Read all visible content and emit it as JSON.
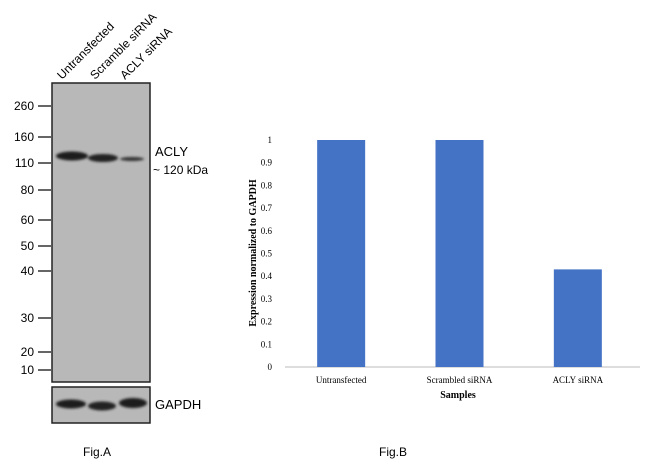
{
  "blot": {
    "lanes": [
      "Untransfected",
      "Scramble siRNA",
      "ACLY siRNA"
    ],
    "markers": [
      260,
      160,
      110,
      80,
      60,
      50,
      40,
      30,
      20,
      10
    ],
    "band_label": "ACLY",
    "band_size": "~ 120 kDa",
    "loading_label": "GAPDH",
    "caption": "Fig.A"
  },
  "chart_data": {
    "type": "bar",
    "categories": [
      "Untransfected",
      "Scrambled siRNA",
      "ACLY siRNA"
    ],
    "values": [
      1,
      1,
      0.43
    ],
    "color": "#4472c4",
    "ylim": [
      0,
      1
    ],
    "yticks": [
      0,
      0.1,
      0.2,
      0.3,
      0.4,
      0.5,
      0.6,
      0.7,
      0.8,
      0.9,
      1
    ],
    "ylabel": "Expression normalized to GAPDH",
    "xlabel": "Samples",
    "caption": "Fig.B"
  }
}
